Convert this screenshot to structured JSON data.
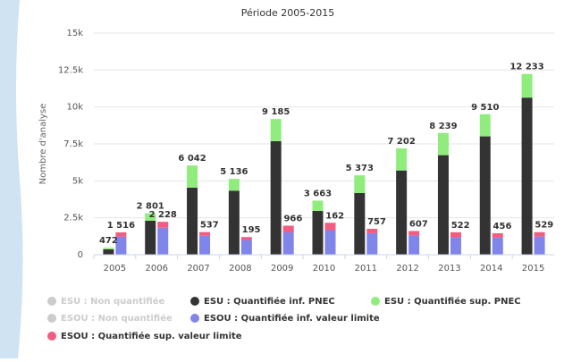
{
  "chart_data": {
    "type": "stacked_grouped_bar",
    "title": "Période 2005-2015",
    "y_label": "Nombre d'analyse",
    "categories": [
      "2005",
      "2006",
      "2007",
      "2008",
      "2009",
      "2010",
      "2011",
      "2012",
      "2013",
      "2014",
      "2015"
    ],
    "ylim": [
      0,
      15000
    ],
    "yticks": [
      {
        "value": 0,
        "label": "0"
      },
      {
        "value": 2500,
        "label": "2.5k"
      },
      {
        "value": 5000,
        "label": "5k"
      },
      {
        "value": 7500,
        "label": "7.5k"
      },
      {
        "value": 10000,
        "label": "10k"
      },
      {
        "value": 12500,
        "label": "12.5k"
      },
      {
        "value": 15000,
        "label": "15k"
      }
    ],
    "grid": true,
    "legend": "bottom",
    "series": [
      {
        "name": "ESU : Non quantifiée",
        "stack": "ESU",
        "visible": false,
        "color": "#cccccc",
        "values": [
          null,
          null,
          null,
          null,
          null,
          null,
          null,
          null,
          null,
          null,
          null
        ]
      },
      {
        "name": "ESU : Quantifiée inf. PNEC",
        "stack": "ESU",
        "visible": true,
        "color": "#333333",
        "values": [
          372,
          2301,
          4542,
          4336,
          7685,
          2963,
          4173,
          5702,
          6739,
          8010,
          10633
        ]
      },
      {
        "name": "ESU : Quantifiée sup. PNEC",
        "stack": "ESU",
        "visible": true,
        "color": "#90ed7d",
        "values": [
          100,
          500,
          1500,
          800,
          1500,
          700,
          1200,
          1500,
          1500,
          1500,
          1600
        ]
      },
      {
        "name": "ESOU : Non quantifiée",
        "stack": "ESOU",
        "visible": false,
        "color": "#cccccc",
        "values": [
          null,
          null,
          null,
          null,
          null,
          null,
          null,
          null,
          null,
          null,
          null
        ]
      },
      {
        "name": "ESOU : Quantifiée inf. valeur limite",
        "stack": "ESOU",
        "visible": true,
        "color": "#8085e9",
        "values": [
          1216,
          1828,
          1287,
          995,
          1516,
          1662,
          1457,
          1307,
          1172,
          1156,
          1229
        ]
      },
      {
        "name": "ESOU : Quantifiée sup. valeur limite",
        "stack": "ESOU",
        "visible": true,
        "color": "#f15c80",
        "values": [
          300,
          400,
          250,
          200,
          450,
          500,
          300,
          300,
          350,
          300,
          300
        ]
      }
    ],
    "stack_labels": [
      {
        "stack": "ESU",
        "values": [
          472,
          2801,
          6042,
          5136,
          9185,
          3663,
          5373,
          7202,
          8239,
          9510,
          12233
        ],
        "value_labels": [
          "472",
          "2 801",
          "6 042",
          "5 136",
          "9 185",
          "3 663",
          "5 373",
          "7 202",
          "8 239",
          "9 510",
          "12 233"
        ]
      },
      {
        "stack": "ESOU",
        "values": [
          1516,
          2228,
          1537,
          1195,
          1966,
          2162,
          1757,
          1607,
          1522,
          1456,
          1529
        ],
        "value_labels": [
          "1 516",
          "2 228",
          "1 537",
          "1 195",
          "1 966",
          "2 162",
          "1 757",
          "1 607",
          "1 522",
          "1 456",
          "1 529"
        ]
      }
    ]
  }
}
